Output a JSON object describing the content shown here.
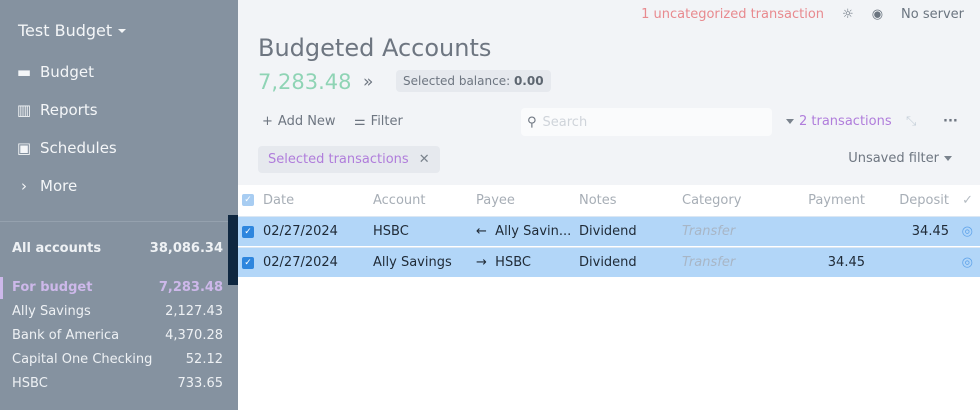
{
  "sidebar": {
    "budget_name": "Test Budget",
    "nav": [
      {
        "label": "Budget",
        "icon": "wallet-icon"
      },
      {
        "label": "Reports",
        "icon": "bar-chart-icon"
      },
      {
        "label": "Schedules",
        "icon": "calendar-icon"
      },
      {
        "label": "More",
        "icon": "chevron-right-icon"
      }
    ],
    "all_accounts": {
      "name": "All accounts",
      "balance": "38,086.34"
    },
    "for_budget": {
      "name": "For budget",
      "balance": "7,283.48"
    },
    "accounts": [
      {
        "name": "Ally Savings",
        "balance": "2,127.43"
      },
      {
        "name": "Bank of America",
        "balance": "4,370.28"
      },
      {
        "name": "Capital One Checking",
        "balance": "52.12"
      },
      {
        "name": "HSBC",
        "balance": "733.65"
      }
    ]
  },
  "topbar": {
    "uncategorized": "1 uncategorized transaction",
    "server": "No server"
  },
  "header": {
    "title": "Budgeted Accounts",
    "balance": "7,283.48",
    "selected_label": "Selected balance:",
    "selected_value": "0.00"
  },
  "toolbar": {
    "add_new": "Add New",
    "filter": "Filter",
    "search_placeholder": "Search",
    "tx_count": "2 transactions",
    "chip": "Selected transactions",
    "unsaved": "Unsaved filter"
  },
  "table": {
    "columns": {
      "date": "Date",
      "account": "Account",
      "payee": "Payee",
      "notes": "Notes",
      "category": "Category",
      "payment": "Payment",
      "deposit": "Deposit"
    },
    "rows": [
      {
        "date": "02/27/2024",
        "account": "HSBC",
        "payee_arrow": "←",
        "payee": "Ally Savin...",
        "notes": "Dividend",
        "category": "Transfer",
        "payment": "",
        "deposit": "34.45"
      },
      {
        "date": "02/27/2024",
        "account": "Ally Savings",
        "payee_arrow": "→",
        "payee": "HSBC",
        "notes": "Dividend",
        "category": "Transfer",
        "payment": "34.45",
        "deposit": ""
      }
    ]
  },
  "colors": {
    "sidebar": "#8592a0",
    "balance": "#8fd4b5",
    "accent": "#b07ddb",
    "selected_row": "#b2d6f8",
    "warning": "#e88a8f"
  }
}
